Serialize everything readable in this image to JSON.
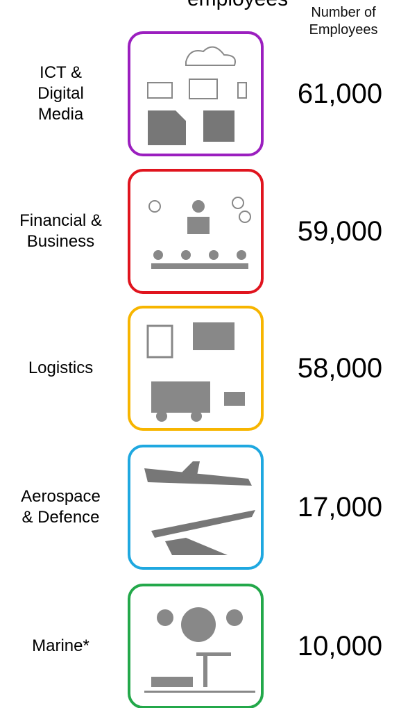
{
  "header": {
    "title": "employees",
    "column": "Number of Employees"
  },
  "rows": [
    {
      "label": "ICT &\nDigital\nMedia",
      "count": "61,000",
      "color": "#9b1fbf"
    },
    {
      "label": "Financial &\nBusiness",
      "count": "59,000",
      "color": "#e0141e"
    },
    {
      "label": "Logistics",
      "count": "58,000",
      "color": "#f7b500"
    },
    {
      "label": "Aerospace\n& Defence",
      "count": "17,000",
      "color": "#1fa8e0"
    },
    {
      "label": "Marine*",
      "count": "10,000",
      "color": "#23a84a"
    }
  ]
}
